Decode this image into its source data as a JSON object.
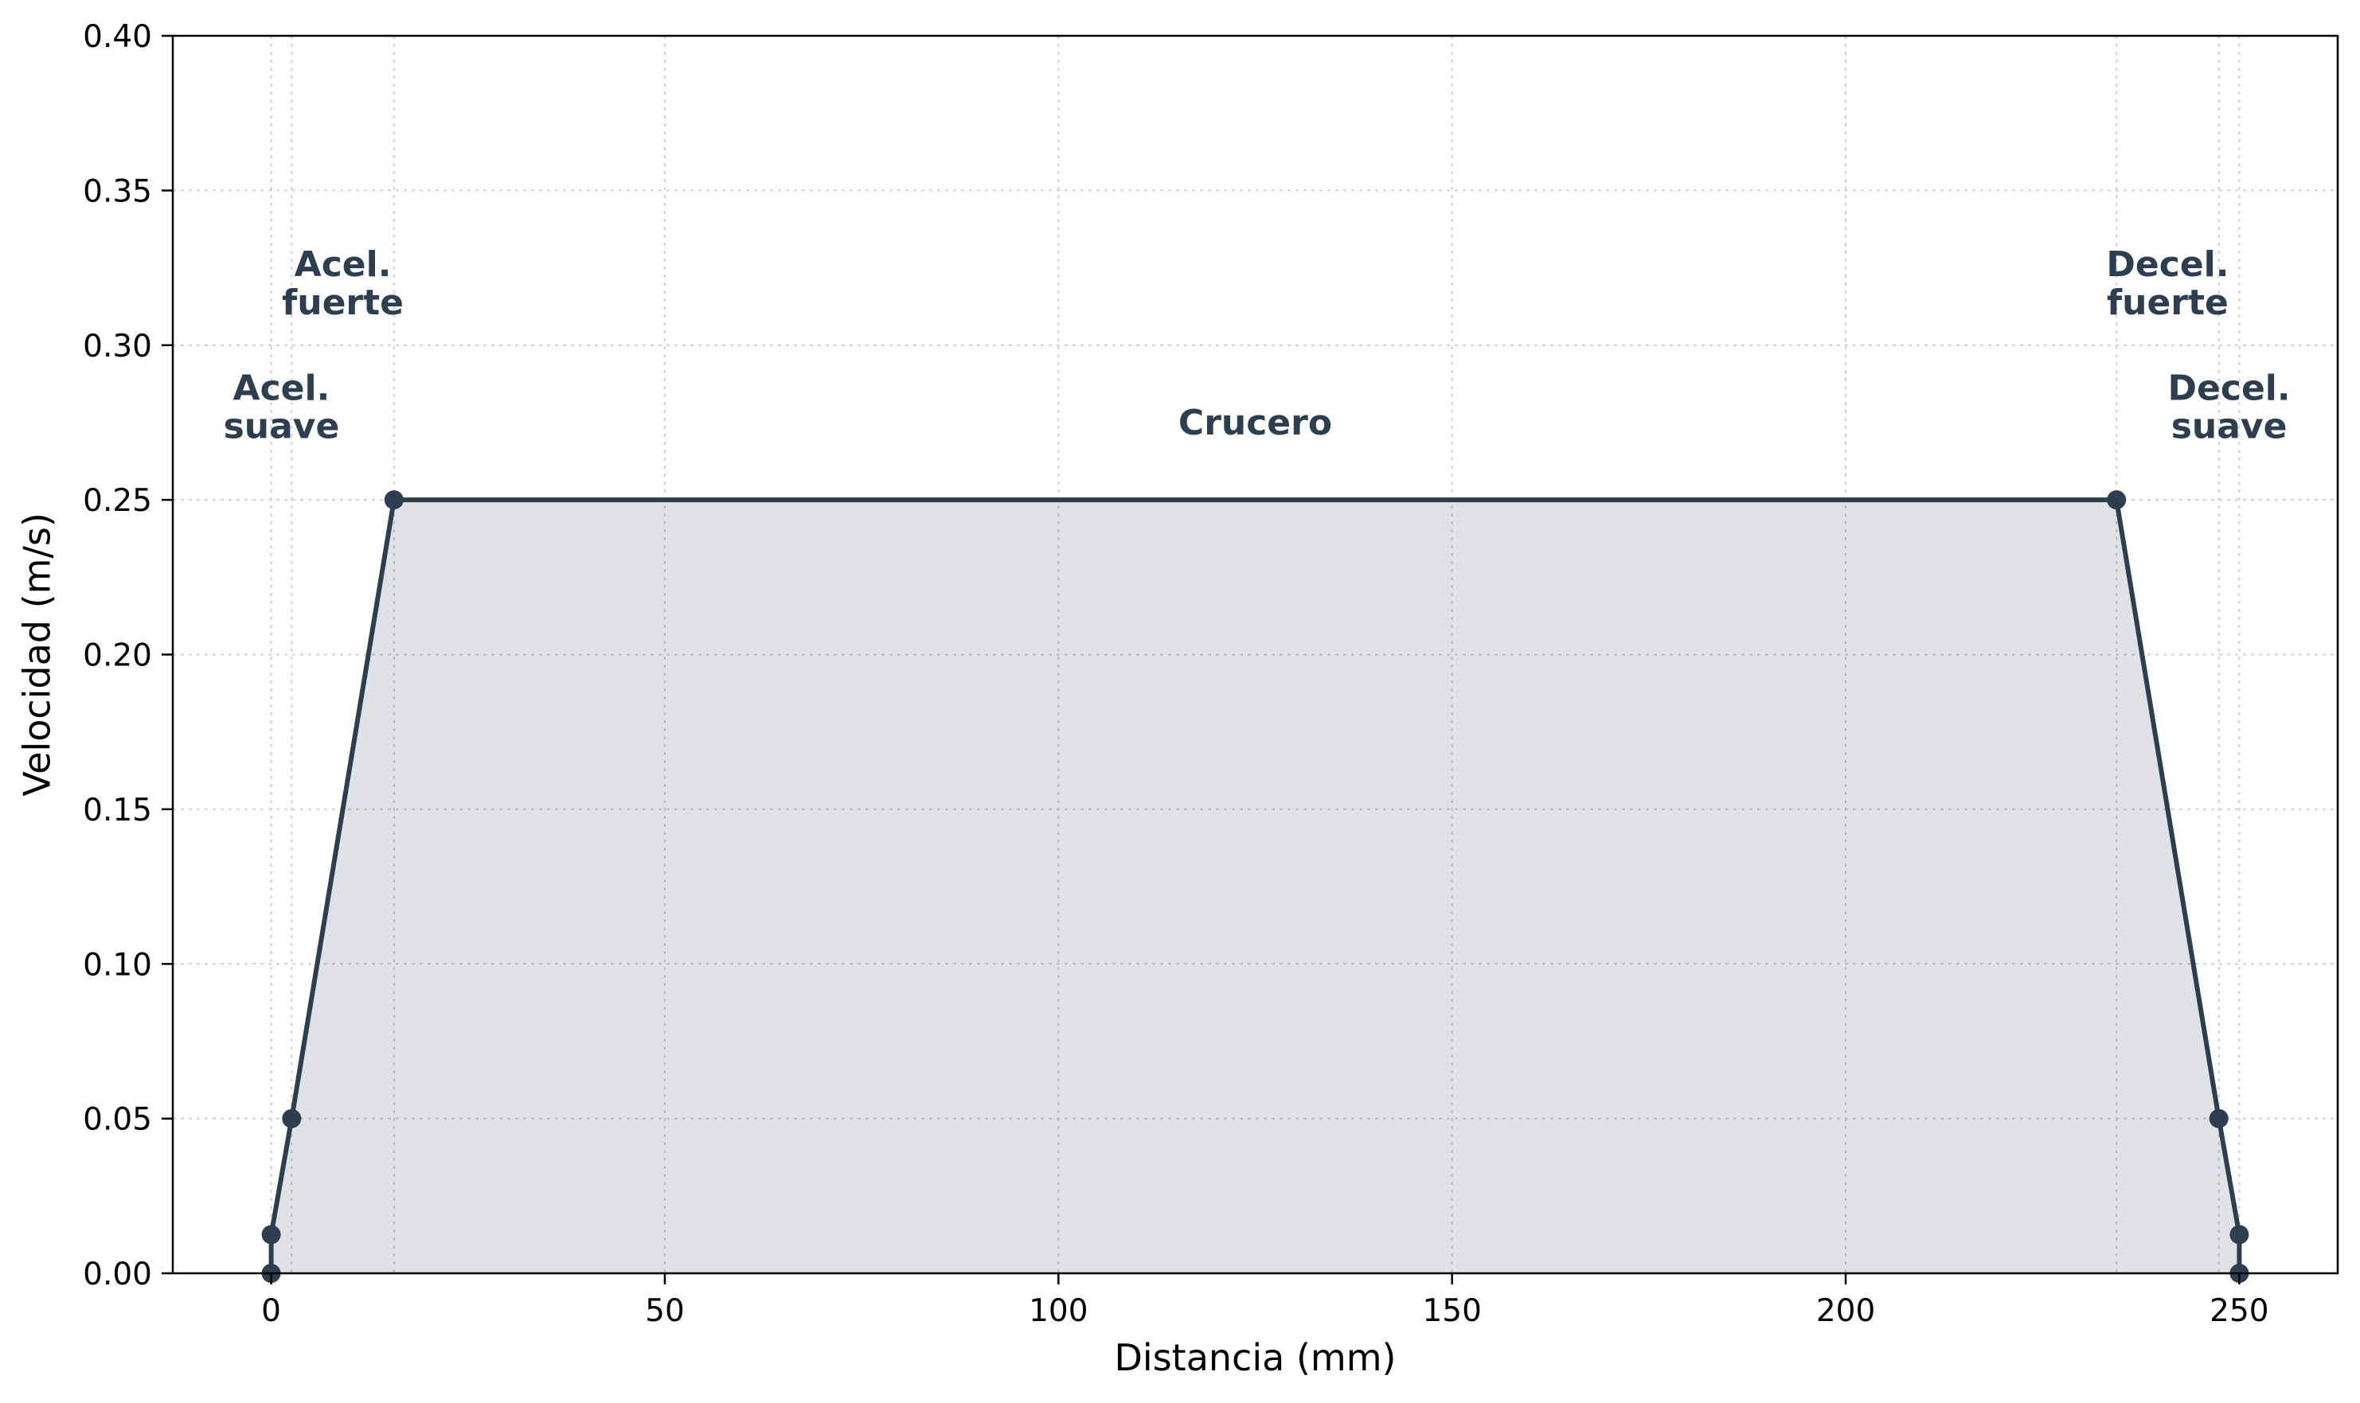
{
  "chart_data": {
    "type": "area",
    "xlabel": "Distancia (mm)",
    "ylabel": "Velocidad (m/s)",
    "xlim": [
      -12.5,
      262.5
    ],
    "ylim": [
      0,
      0.4
    ],
    "x_ticks": [
      0,
      50,
      100,
      150,
      200,
      250
    ],
    "y_ticks": [
      0.0,
      0.05,
      0.1,
      0.15,
      0.2,
      0.25,
      0.3,
      0.35,
      0.4
    ],
    "x_tick_labels": [
      "0",
      "50",
      "100",
      "150",
      "200",
      "250"
    ],
    "y_tick_labels": [
      "0.00",
      "0.05",
      "0.10",
      "0.15",
      "0.20",
      "0.25",
      "0.30",
      "0.35",
      "0.40"
    ],
    "grid": true,
    "series": [
      {
        "x": [
          0,
          0,
          2.6,
          15.6,
          234.4,
          247.4,
          250,
          250
        ],
        "y": [
          0,
          0.0125,
          0.05,
          0.25,
          0.25,
          0.05,
          0.0125,
          0
        ]
      }
    ],
    "phase_boundaries": [
      0,
      2.6,
      15.6,
      234.4,
      247.4,
      250
    ],
    "annotations": [
      {
        "lines": [
          "Acel.",
          "suave"
        ],
        "x": 1.3,
        "y": 0.28
      },
      {
        "lines": [
          "Acel.",
          "fuerte"
        ],
        "x": 9.1,
        "y": 0.32
      },
      {
        "lines": [
          "Crucero"
        ],
        "x": 125,
        "y": 0.275
      },
      {
        "lines": [
          "Decel.",
          "fuerte"
        ],
        "x": 240.9,
        "y": 0.32
      },
      {
        "lines": [
          "Decel.",
          "suave"
        ],
        "x": 248.7,
        "y": 0.28
      }
    ],
    "colors": {
      "line": "#2c3e50",
      "fill": "#2c3e50",
      "fill_opacity": 0.15,
      "text": "#2c3e50"
    }
  }
}
